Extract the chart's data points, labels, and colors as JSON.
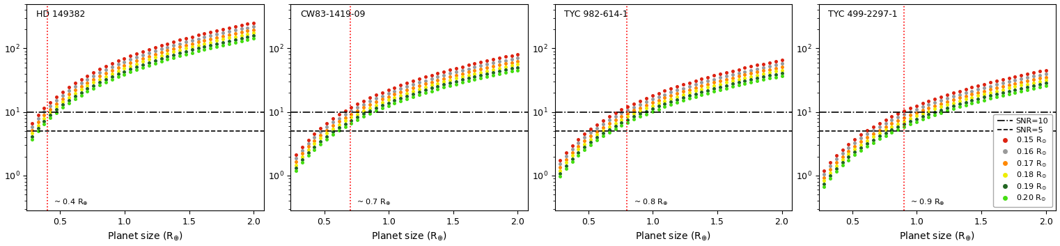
{
  "panels": [
    {
      "title": "HD 149382",
      "vline_x": 0.4,
      "vline_label": "~ 0.4 R$_{\\oplus}$",
      "scale_factor": 1.0
    },
    {
      "title": "CW83-1419-09",
      "vline_x": 0.7,
      "vline_label": "~ 0.7 R$_{\\oplus}$",
      "scale_factor": 0.32
    },
    {
      "title": "TYC 982-614-1",
      "vline_x": 0.8,
      "vline_label": "~ 0.8 R$_{\\oplus}$",
      "scale_factor": 0.26
    },
    {
      "title": "TYC 499-2297-1",
      "vline_x": 0.9,
      "vline_label": "~ 0.9 R$_{\\oplus}$",
      "scale_factor": 0.18
    }
  ],
  "series": [
    {
      "label": "0.15 R$_{\\odot}$",
      "color": "#dd2211",
      "Rs": 0.15
    },
    {
      "label": "0.16 R$_{\\odot}$",
      "color": "#999999",
      "Rs": 0.16
    },
    {
      "label": "0.17 R$_{\\odot}$",
      "color": "#ff8800",
      "Rs": 0.17
    },
    {
      "label": "0.18 R$_{\\odot}$",
      "color": "#eeee00",
      "Rs": 0.18
    },
    {
      "label": "0.19 R$_{\\odot}$",
      "color": "#226622",
      "Rs": 0.19
    },
    {
      "label": "0.20 R$_{\\odot}$",
      "color": "#44dd11",
      "Rs": 0.2
    }
  ],
  "xlim": [
    0.24,
    2.08
  ],
  "ylim": [
    0.28,
    500
  ],
  "x_start": 0.28,
  "x_end": 2.0,
  "n_points": 37,
  "snr10_y": 10,
  "snr5_y": 5,
  "snr10_label": "SNR=10",
  "snr5_label": "SNR=5",
  "xlabel": "Planet size (R$_{\\oplus}$)",
  "xticks": [
    0.5,
    1.0,
    1.5,
    2.0
  ],
  "yticks": [
    1,
    10,
    100
  ],
  "background_color": "#ffffff",
  "legend_panel": 3,
  "snr_exponent": 1.85,
  "base_snr": 70.0,
  "ref_Rs": 0.15
}
